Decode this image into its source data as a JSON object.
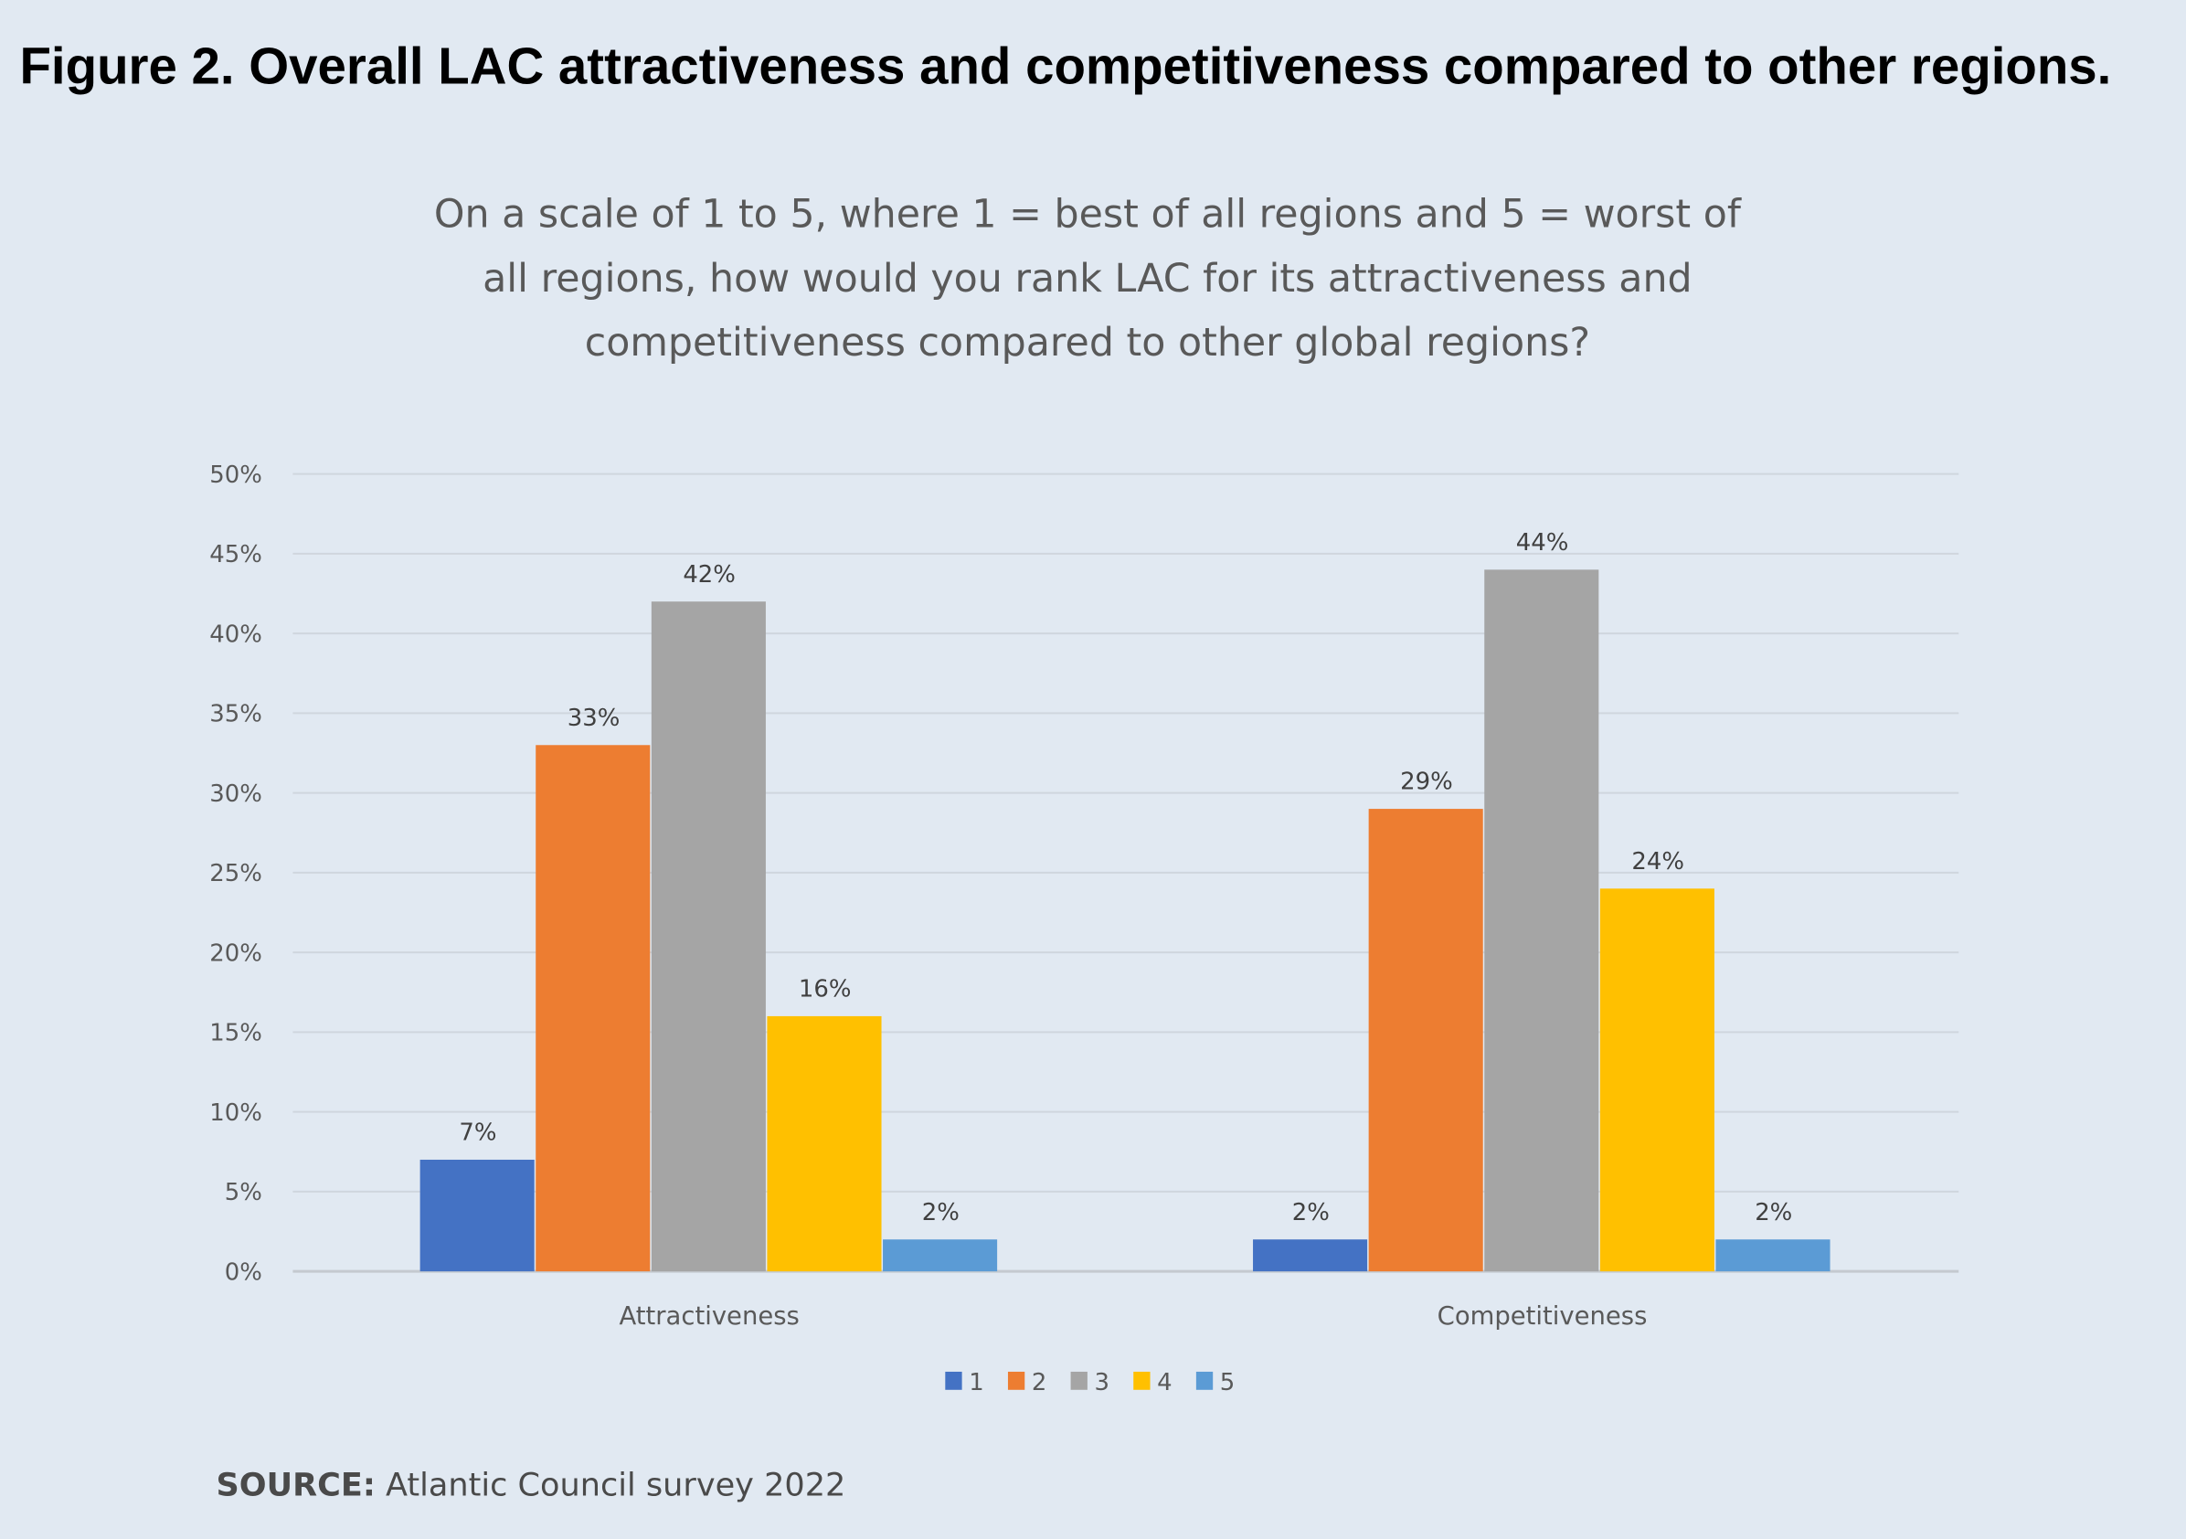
{
  "figure_title": "Figure 2. Overall LAC attractiveness and competitiveness compared to other regions.",
  "source_label": "SOURCE:",
  "source_text": "Atlantic Council survey 2022",
  "chart_data": {
    "type": "bar",
    "title": [
      "On a scale of 1 to 5, where 1 = best of all regions and 5 = worst of",
      "all regions, how would you rank LAC for its attractiveness and",
      "competitiveness compared to other global regions?"
    ],
    "categories": [
      "Attractiveness",
      "Competitiveness"
    ],
    "series": [
      {
        "name": "1",
        "values": [
          7,
          2
        ],
        "color": "#4472c4"
      },
      {
        "name": "2",
        "values": [
          33,
          29
        ],
        "color": "#ed7d31"
      },
      {
        "name": "3",
        "values": [
          42,
          44
        ],
        "color": "#a5a5a5"
      },
      {
        "name": "4",
        "values": [
          16,
          24
        ],
        "color": "#ffc000"
      },
      {
        "name": "5",
        "values": [
          2,
          2
        ],
        "color": "#5b9bd5"
      }
    ],
    "ylim": [
      0,
      50
    ],
    "yticks": [
      "0%",
      "5%",
      "10%",
      "15%",
      "20%",
      "25%",
      "30%",
      "35%",
      "40%",
      "45%",
      "50%"
    ],
    "data_labels": [
      [
        "7%",
        "2%"
      ],
      [
        "33%",
        "29%"
      ],
      [
        "42%",
        "44%"
      ],
      [
        "16%",
        "24%"
      ],
      [
        "2%",
        "2%"
      ]
    ],
    "grid": true,
    "legend": "bottom"
  }
}
